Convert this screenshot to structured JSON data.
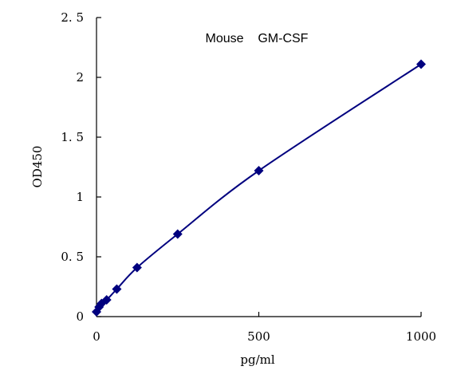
{
  "chart_data": {
    "type": "scatter",
    "title": "Mouse    GM-CSF",
    "xlabel": "pg/ml",
    "ylabel": "OD450",
    "xlim": [
      0,
      1000
    ],
    "ylim": [
      0,
      2.5
    ],
    "x_ticks": [
      0,
      500,
      1000
    ],
    "x_tick_labels": [
      "0",
      "500",
      "1000"
    ],
    "y_ticks": [
      0,
      0.5,
      1,
      1.5,
      2,
      2.5
    ],
    "y_tick_labels": [
      "0",
      "0. 5",
      "1",
      "1. 5",
      "2",
      "2. 5"
    ],
    "grid": false,
    "trendline": "smooth",
    "series": [
      {
        "color": "#00007f",
        "x": [
          0,
          7.8,
          15.6,
          31.25,
          62.5,
          125,
          250,
          500,
          1000
        ],
        "y": [
          0.04,
          0.08,
          0.11,
          0.14,
          0.23,
          0.41,
          0.69,
          1.22,
          2.11
        ]
      }
    ]
  }
}
